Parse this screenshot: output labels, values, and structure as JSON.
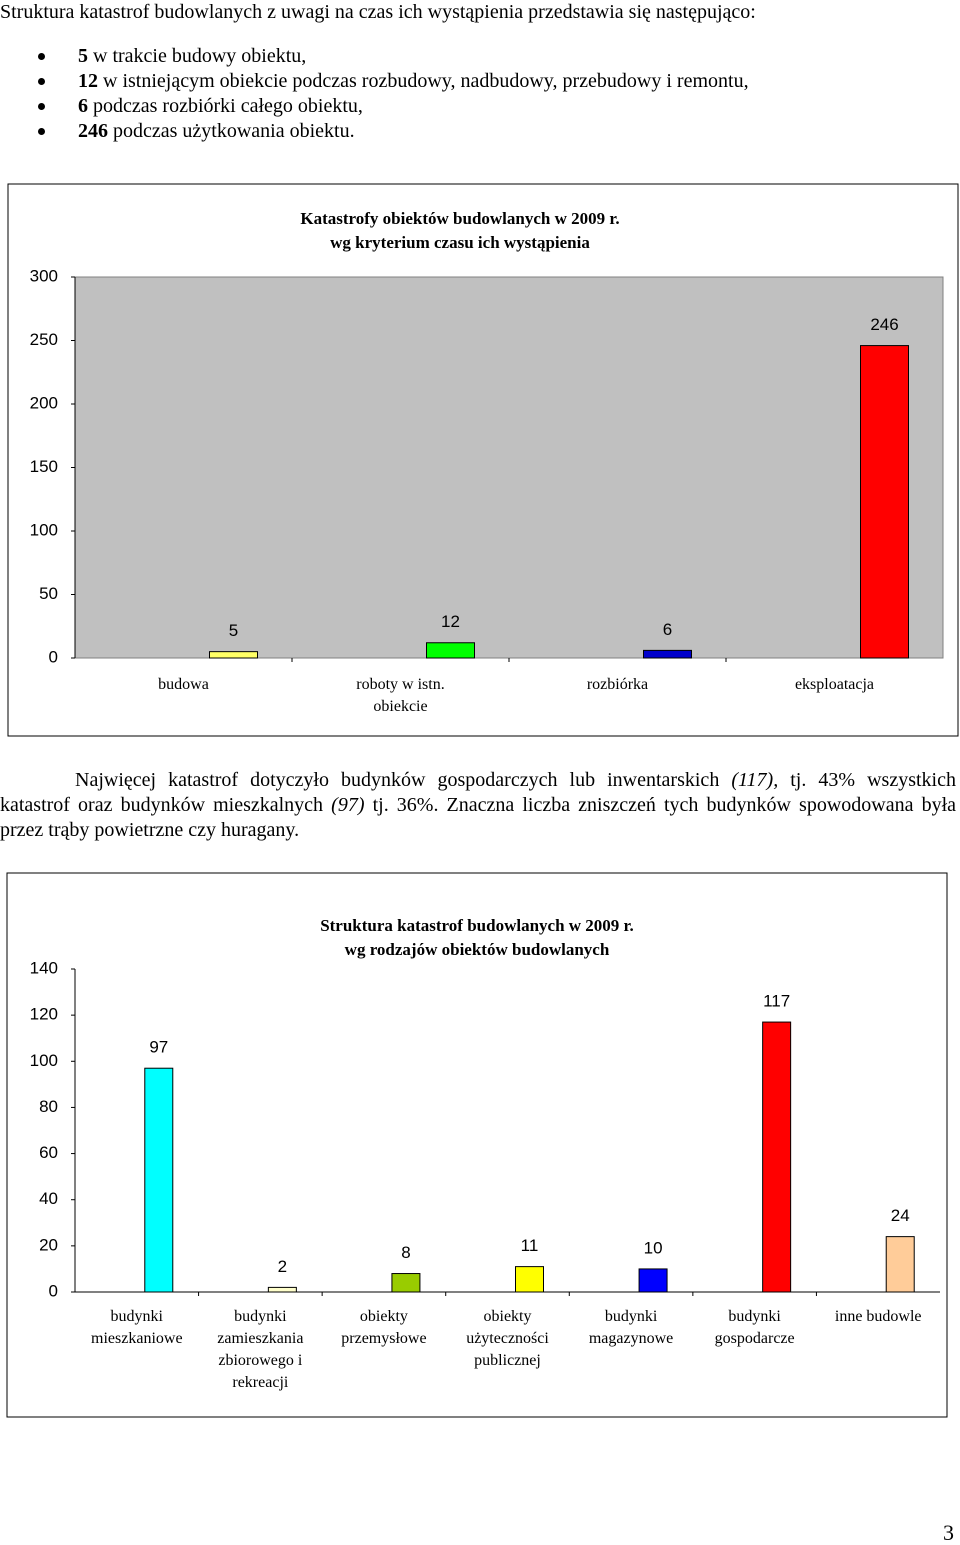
{
  "intro": "Struktura katastrof budowlanych z uwagi na czas ich wystąpienia przedstawia się następująco:",
  "bullets": [
    {
      "number": "5",
      "text": "w trakcie budowy obiektu,"
    },
    {
      "number": "12",
      "text": "w istniejącym obiekcie podczas rozbudowy, nadbudowy, przebudowy i remontu,"
    },
    {
      "number": "6",
      "text": "podczas rozbiórki całego obiektu,"
    },
    {
      "number": "246",
      "text": "podczas użytkowania obiektu."
    }
  ],
  "paragraph": [
    {
      "text": "Najwięcej katastrof dotyczyło budynków gospodarczych lub inwentarskich "
    },
    {
      "text": "(117),",
      "italic": true
    },
    {
      "text": " tj. 43% wszystkich katastrof oraz budynków mieszkalnych "
    },
    {
      "text": "(97)",
      "italic": true
    },
    {
      "text": " tj. 36%. Znaczna liczba zniszczeń tych budynków spowodowana była przez trąby powietrzne czy huragany."
    }
  ],
  "chart_data": [
    {
      "type": "bar",
      "title": "Katastrofy obiektów budowlanych w 2009 r.",
      "subtitle": "wg kryterium czasu ich wystąpienia",
      "categories": [
        "budowa",
        "roboty w istn.\nobiekcie",
        "rozbiórka",
        "eksploatacja"
      ],
      "values": [
        5,
        12,
        6,
        246
      ],
      "colors": [
        "#ffff66",
        "#00ff00",
        "#0000cc",
        "#ff0000"
      ],
      "ylim": [
        0,
        300
      ],
      "yticks": [
        0,
        50,
        100,
        150,
        200,
        250,
        300
      ],
      "plot_background": "#c0c0c0"
    },
    {
      "type": "bar",
      "title": "Struktura katastrof budowlanych w 2009 r.",
      "subtitle": "wg rodzajów obiektów budowlanych",
      "categories": [
        "budynki\nmieszkaniowe",
        "budynki\nzamieszkania\nzbiorowego i\nrekreacji",
        "obiekty\nprzemysłowe",
        "obiekty\nużyteczności\npublicznej",
        "budynki\nmagazynowe",
        "budynki\ngospodarcze",
        "inne budowle"
      ],
      "values": [
        97,
        2,
        8,
        11,
        10,
        117,
        24
      ],
      "colors": [
        "#00ffff",
        "#ffffcc",
        "#99cc00",
        "#ffff00",
        "#0000ff",
        "#ff0000",
        "#ffcc99"
      ],
      "ylim": [
        0,
        140
      ],
      "yticks": [
        0,
        20,
        40,
        60,
        80,
        100,
        120,
        140
      ],
      "plot_background": "#ffffff"
    }
  ],
  "page_number": "3"
}
